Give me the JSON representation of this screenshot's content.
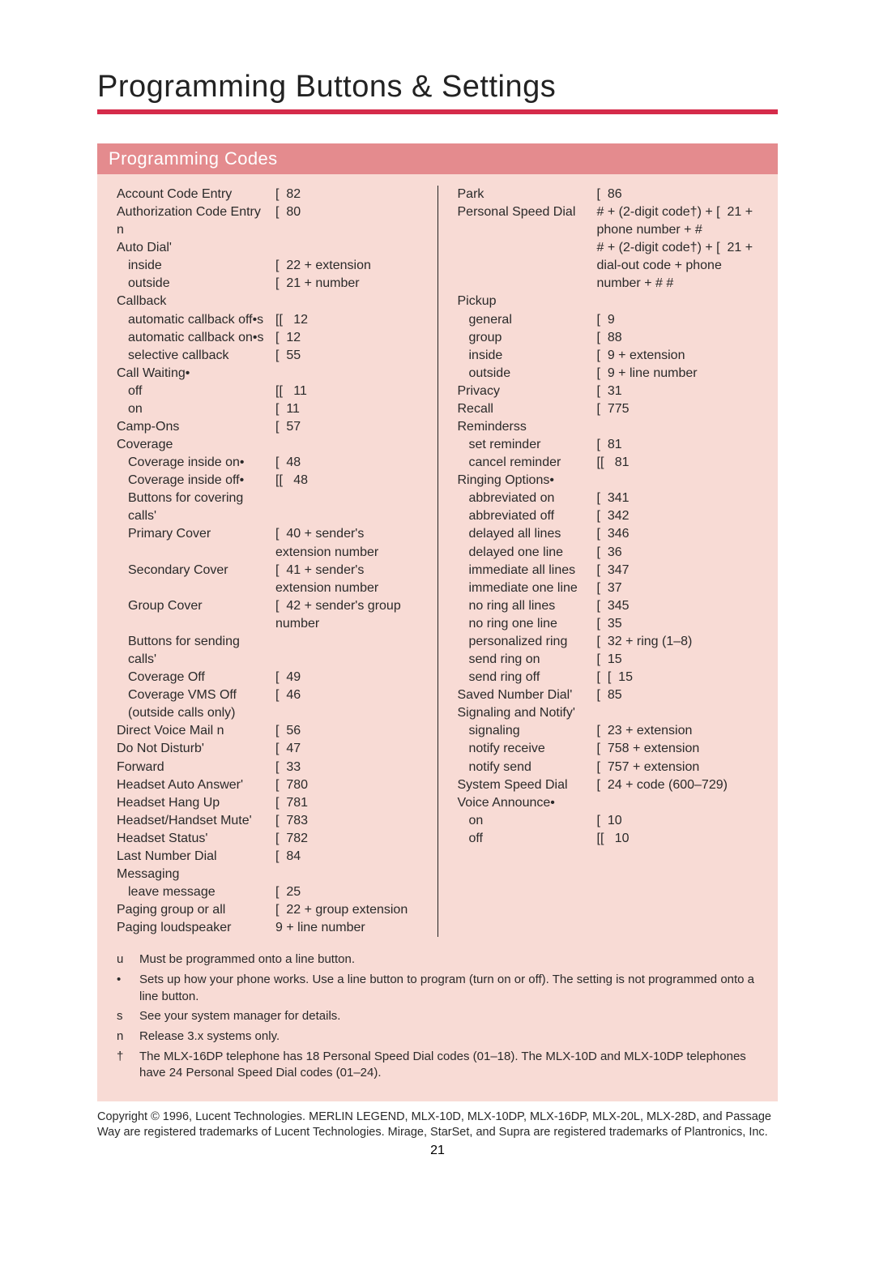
{
  "title": "Programming Buttons & Settings",
  "section_header": "Programming Codes",
  "colors": {
    "rule": "#d52b4a",
    "section_bg": "#e48b8e",
    "body_bg": "#f8dbd5",
    "text": "#2a2a2a",
    "white": "#ffffff"
  },
  "left_column": [
    {
      "label": "Account Code Entry",
      "code": "[  82"
    },
    {
      "label": "Authorization Code Entry n",
      "code": "[  80"
    },
    {
      "label": "Auto Dial'",
      "code": ""
    },
    {
      "label": "inside",
      "indent": true,
      "code": "[  22 + extension"
    },
    {
      "label": "outside",
      "indent": true,
      "code": "[  21 + number"
    },
    {
      "label": "Callback",
      "code": ""
    },
    {
      "label": "automatic callback off•s",
      "indent": true,
      "code": "[[   12"
    },
    {
      "label": "automatic callback on•s",
      "indent": true,
      "code": "[  12"
    },
    {
      "label": "selective callback",
      "indent": true,
      "code": "[  55"
    },
    {
      "label": "Call Waiting•",
      "code": ""
    },
    {
      "label": "off",
      "indent": true,
      "code": "[[   11"
    },
    {
      "label": "on",
      "indent": true,
      "code": "[  11"
    },
    {
      "label": "Camp-Ons",
      "code": "[  57"
    },
    {
      "label": "Coverage",
      "code": ""
    },
    {
      "label": "Coverage inside on•",
      "indent": true,
      "code": "[  48"
    },
    {
      "label": "Coverage inside off•",
      "indent": true,
      "code": "[[   48"
    },
    {
      "label": "Buttons for covering calls'",
      "indent": true,
      "code": ""
    },
    {
      "label": "Primary Cover",
      "indent": true,
      "code": "[  40 + sender's extension number"
    },
    {
      "label": "Secondary Cover",
      "indent": true,
      "code": "[  41 + sender's extension number"
    },
    {
      "label": "Group Cover",
      "indent": true,
      "code": "[  42 + sender's group number"
    },
    {
      "label": "Buttons for sending calls'",
      "indent": true,
      "code": ""
    },
    {
      "label": "Coverage Off",
      "indent": true,
      "code": "[  49"
    },
    {
      "label": "Coverage VMS Off",
      "indent": true,
      "code": "[  46"
    },
    {
      "label": "(outside calls only)",
      "indent": true,
      "code": ""
    },
    {
      "label": "Direct Voice Mail n",
      "code": "[  56"
    },
    {
      "label": "Do Not Disturb'",
      "code": "[  47"
    },
    {
      "label": "Forward",
      "code": "[  33"
    },
    {
      "label": "Headset Auto Answer'",
      "code": "[  780"
    },
    {
      "label": "Headset Hang Up",
      "code": "[  781"
    },
    {
      "label": "Headset/Handset Mute'",
      "code": "[  783"
    },
    {
      "label": "Headset Status'",
      "code": "[  782"
    },
    {
      "label": "Last Number Dial",
      "code": "[  84"
    },
    {
      "label": "Messaging",
      "code": ""
    },
    {
      "label": "leave message",
      "indent": true,
      "code": "[  25"
    },
    {
      "label": "Paging group or all",
      "code": "[  22 + group extension"
    },
    {
      "label": "Paging loudspeaker",
      "code": "9 + line number"
    }
  ],
  "right_column": [
    {
      "label": "Park",
      "code": "[  86"
    },
    {
      "label": "Personal Speed Dial",
      "code": "# + (2-digit code†) + [  21 + phone number + #"
    },
    {
      "label": "",
      "code": "# + (2-digit code†) + [  21 + dial-out code + phone number + # #"
    },
    {
      "label": "Pickup",
      "code": ""
    },
    {
      "label": "general",
      "indent": true,
      "code": "[  9"
    },
    {
      "label": "group",
      "indent": true,
      "code": "[  88"
    },
    {
      "label": "inside",
      "indent": true,
      "code": "[  9 + extension"
    },
    {
      "label": "outside",
      "indent": true,
      "code": "[  9 + line number"
    },
    {
      "label": "Privacy",
      "code": "[  31"
    },
    {
      "label": "Recall",
      "code": "[  775"
    },
    {
      "label": "Reminderss",
      "code": ""
    },
    {
      "label": "set reminder",
      "indent": true,
      "code": "[  81"
    },
    {
      "label": "cancel reminder",
      "indent": true,
      "code": "[[   81"
    },
    {
      "label": "Ringing Options•",
      "code": ""
    },
    {
      "label": "abbreviated on",
      "indent": true,
      "code": "[  341"
    },
    {
      "label": "abbreviated off",
      "indent": true,
      "code": "[  342"
    },
    {
      "label": "delayed all lines",
      "indent": true,
      "code": "[  346"
    },
    {
      "label": "delayed one line",
      "indent": true,
      "code": "[  36"
    },
    {
      "label": "immediate all lines",
      "indent": true,
      "code": "[  347"
    },
    {
      "label": "immediate one line",
      "indent": true,
      "code": "[  37"
    },
    {
      "label": "no ring all lines",
      "indent": true,
      "code": "[  345"
    },
    {
      "label": "no ring one line",
      "indent": true,
      "code": "[  35"
    },
    {
      "label": "personalized ring",
      "indent": true,
      "code": "[  32 + ring (1–8)"
    },
    {
      "label": "send ring on",
      "indent": true,
      "code": "[  15"
    },
    {
      "label": "send ring off",
      "indent": true,
      "code": "[  [  15"
    },
    {
      "label": "Saved Number Dial'",
      "code": "[  85"
    },
    {
      "label": "Signaling and Notify'",
      "code": ""
    },
    {
      "label": "signaling",
      "indent": true,
      "code": "[  23 + extension"
    },
    {
      "label": "notify receive",
      "indent": true,
      "code": "[  758 + extension"
    },
    {
      "label": "notify send",
      "indent": true,
      "code": "[  757 + extension"
    },
    {
      "label": "System Speed Dial",
      "code": "[  24 + code (600–729)"
    },
    {
      "label": "Voice Announce•",
      "code": ""
    },
    {
      "label": "on",
      "indent": true,
      "code": "[  10"
    },
    {
      "label": "off",
      "indent": true,
      "code": "[[   10"
    }
  ],
  "footnotes": [
    {
      "marker": "u",
      "text": "Must be programmed onto a line button."
    },
    {
      "marker": "•",
      "text": "Sets up how your phone works. Use a line button to program (turn on or off). The setting is not programmed onto a line button."
    },
    {
      "marker": "s",
      "text": "See your system manager for details."
    },
    {
      "marker": "n",
      "text": "Release 3.x systems only."
    },
    {
      "marker": "†",
      "text": "The MLX-16DP telephone has 18 Personal Speed Dial codes (01–18). The MLX-10D and MLX-10DP telephones have 24 Personal Speed Dial codes (01–24)."
    }
  ],
  "copyright": "Copyright © 1996, Lucent Technologies. MERLIN LEGEND, MLX-10D, MLX-10DP, MLX-16DP, MLX-20L, MLX-28D, and Passage Way are registered trademarks of Lucent Technologies.  Mirage, StarSet, and Supra are registered trademarks of Plantronics, Inc.",
  "page_number": "21"
}
